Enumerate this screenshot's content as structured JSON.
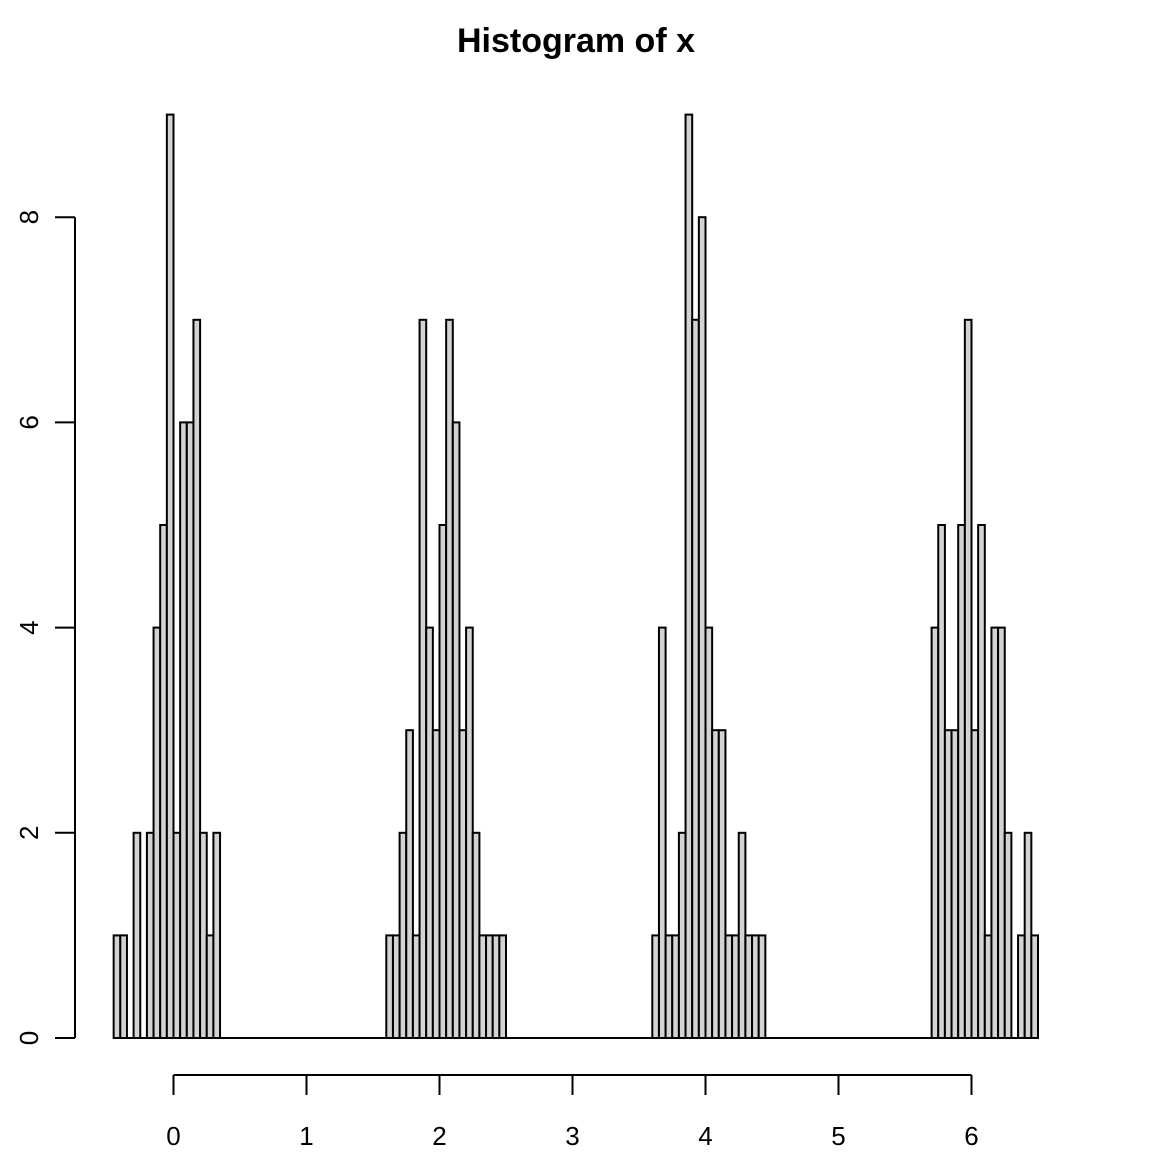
{
  "chart_data": {
    "type": "bar",
    "title": "Histogram of x",
    "xlabel": "",
    "ylabel": "",
    "bin_width": 0.05,
    "xlim": [
      -0.45,
      6.5
    ],
    "ylim": [
      0,
      9
    ],
    "x_ticks": [
      0,
      1,
      2,
      3,
      4,
      5,
      6
    ],
    "y_ticks": [
      0,
      2,
      4,
      6,
      8
    ],
    "bar_fill": "#d3d3d3",
    "bar_stroke": "#000000",
    "bins": [
      {
        "start": -0.45,
        "count": 1
      },
      {
        "start": -0.4,
        "count": 1
      },
      {
        "start": -0.35,
        "count": 0
      },
      {
        "start": -0.3,
        "count": 2
      },
      {
        "start": -0.25,
        "count": 0
      },
      {
        "start": -0.2,
        "count": 2
      },
      {
        "start": -0.15,
        "count": 4
      },
      {
        "start": -0.1,
        "count": 5
      },
      {
        "start": -0.05,
        "count": 9
      },
      {
        "start": 0.0,
        "count": 2
      },
      {
        "start": 0.05,
        "count": 6
      },
      {
        "start": 0.1,
        "count": 6
      },
      {
        "start": 0.15,
        "count": 7
      },
      {
        "start": 0.2,
        "count": 2
      },
      {
        "start": 0.25,
        "count": 1
      },
      {
        "start": 0.3,
        "count": 2
      },
      {
        "start": 1.6,
        "count": 1
      },
      {
        "start": 1.65,
        "count": 1
      },
      {
        "start": 1.7,
        "count": 2
      },
      {
        "start": 1.75,
        "count": 3
      },
      {
        "start": 1.8,
        "count": 1
      },
      {
        "start": 1.85,
        "count": 7
      },
      {
        "start": 1.9,
        "count": 4
      },
      {
        "start": 1.95,
        "count": 3
      },
      {
        "start": 2.0,
        "count": 5
      },
      {
        "start": 2.05,
        "count": 7
      },
      {
        "start": 2.1,
        "count": 6
      },
      {
        "start": 2.15,
        "count": 3
      },
      {
        "start": 2.2,
        "count": 4
      },
      {
        "start": 2.25,
        "count": 2
      },
      {
        "start": 2.3,
        "count": 1
      },
      {
        "start": 2.35,
        "count": 1
      },
      {
        "start": 2.4,
        "count": 1
      },
      {
        "start": 2.45,
        "count": 1
      },
      {
        "start": 3.6,
        "count": 1
      },
      {
        "start": 3.65,
        "count": 4
      },
      {
        "start": 3.7,
        "count": 1
      },
      {
        "start": 3.75,
        "count": 1
      },
      {
        "start": 3.8,
        "count": 2
      },
      {
        "start": 3.85,
        "count": 9
      },
      {
        "start": 3.9,
        "count": 7
      },
      {
        "start": 3.95,
        "count": 8
      },
      {
        "start": 4.0,
        "count": 4
      },
      {
        "start": 4.05,
        "count": 3
      },
      {
        "start": 4.1,
        "count": 3
      },
      {
        "start": 4.15,
        "count": 1
      },
      {
        "start": 4.2,
        "count": 1
      },
      {
        "start": 4.25,
        "count": 2
      },
      {
        "start": 4.3,
        "count": 1
      },
      {
        "start": 4.35,
        "count": 1
      },
      {
        "start": 4.4,
        "count": 1
      },
      {
        "start": 5.7,
        "count": 4
      },
      {
        "start": 5.75,
        "count": 5
      },
      {
        "start": 5.8,
        "count": 3
      },
      {
        "start": 5.85,
        "count": 3
      },
      {
        "start": 5.9,
        "count": 5
      },
      {
        "start": 5.95,
        "count": 7
      },
      {
        "start": 6.0,
        "count": 3
      },
      {
        "start": 6.05,
        "count": 5
      },
      {
        "start": 6.1,
        "count": 1
      },
      {
        "start": 6.15,
        "count": 4
      },
      {
        "start": 6.2,
        "count": 4
      },
      {
        "start": 6.25,
        "count": 2
      },
      {
        "start": 6.3,
        "count": 0
      },
      {
        "start": 6.35,
        "count": 1
      },
      {
        "start": 6.4,
        "count": 2
      },
      {
        "start": 6.45,
        "count": 1
      }
    ]
  }
}
